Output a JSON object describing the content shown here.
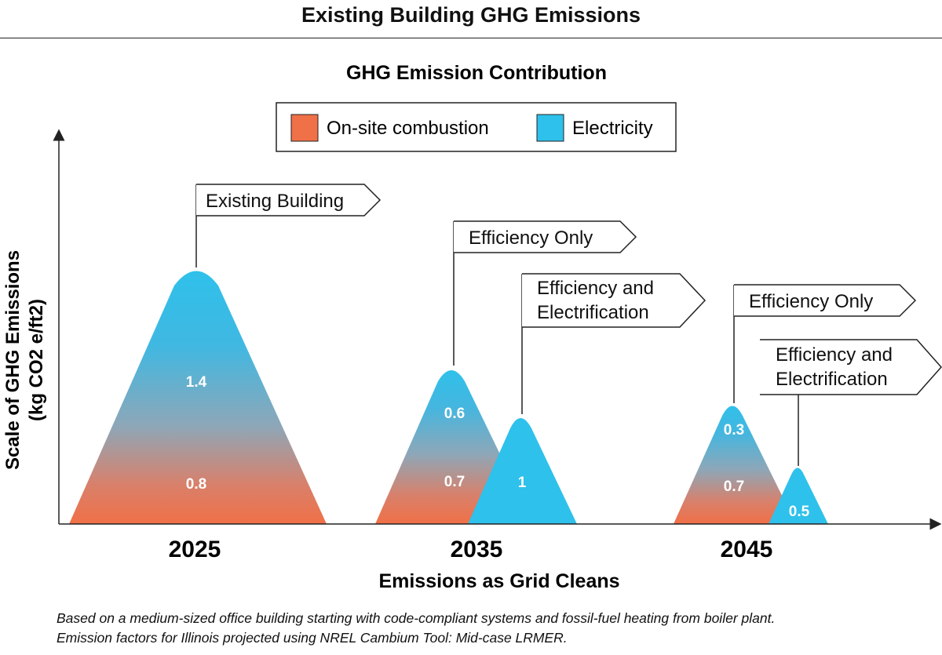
{
  "header": {
    "title": "Existing Building GHG Emissions"
  },
  "chart_data": {
    "type": "area",
    "title": "GHG Emission Contribution",
    "ylabel_lines": [
      "Scale of GHG Emissions",
      "(kg CO2 e/ft2)"
    ],
    "xlabel": "Emissions as Grid Cleans",
    "categories": [
      "2025",
      "2035",
      "2045"
    ],
    "legend": {
      "position": "top-center",
      "items": [
        {
          "name": "On-site combustion",
          "color": "#f07047"
        },
        {
          "name": "Electricity",
          "color": "#2ec1eb"
        }
      ]
    },
    "series": [
      {
        "name": "Existing Building",
        "category": "2025",
        "on_site_combustion": 0.8,
        "electricity": 1.4
      },
      {
        "name": "Efficiency Only",
        "category": "2035",
        "on_site_combustion": 0.7,
        "electricity": 0.6
      },
      {
        "name": "Efficiency and Electrification",
        "category": "2035",
        "on_site_combustion": 0,
        "electricity": 1.0
      },
      {
        "name": "Efficiency Only",
        "category": "2045",
        "on_site_combustion": 0.7,
        "electricity": 0.3
      },
      {
        "name": "Efficiency and Electrification",
        "category": "2045",
        "on_site_combustion": 0,
        "electricity": 0.5
      }
    ]
  },
  "footnote": {
    "line1": "Based on a medium-sized office building starting with code-compliant systems and fossil-fuel heating from boiler plant.",
    "line2": "Emission factors for Illinois projected using NREL Cambium Tool: Mid-case LRMER."
  }
}
